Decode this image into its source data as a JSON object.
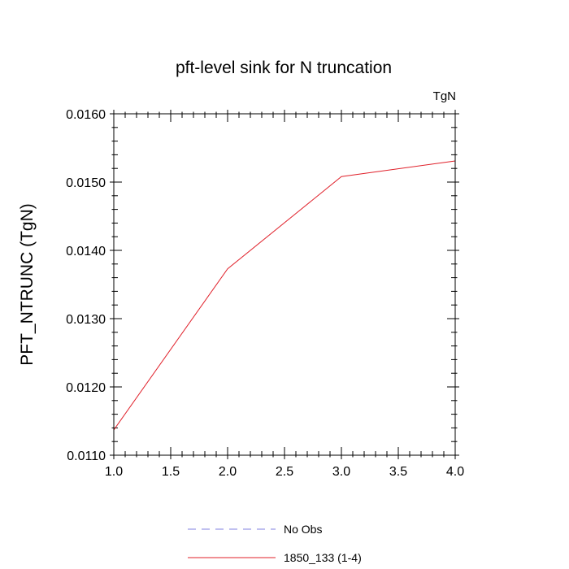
{
  "chart_data": {
    "type": "line",
    "title": "pft-level sink for N truncation",
    "units_label": "TgN",
    "ylabel": "PFT_NTRUNC  (TgN)",
    "xlabel": "",
    "xlim": [
      1.0,
      4.0
    ],
    "ylim": [
      0.011,
      0.016
    ],
    "x_ticks": [
      1.0,
      1.5,
      2.0,
      2.5,
      3.0,
      3.5,
      4.0
    ],
    "x_tick_labels": [
      "1.0",
      "1.5",
      "2.0",
      "2.5",
      "3.0",
      "3.5",
      "4.0"
    ],
    "y_ticks": [
      0.011,
      0.012,
      0.013,
      0.014,
      0.015,
      0.016
    ],
    "y_tick_labels": [
      "0.0110",
      "0.0120",
      "0.0130",
      "0.0140",
      "0.0150",
      "0.0160"
    ],
    "grid": false,
    "legend_position": "bottom",
    "series": [
      {
        "name": "No Obs",
        "color": "#8080e0",
        "style": "dashed",
        "x": [],
        "values": []
      },
      {
        "name": "1850_133 (1-4)",
        "color": "#e0202a",
        "style": "solid",
        "x": [
          1.0,
          2.0,
          3.0,
          4.0
        ],
        "values": [
          0.01137,
          0.01373,
          0.01508,
          0.01531
        ]
      }
    ]
  }
}
